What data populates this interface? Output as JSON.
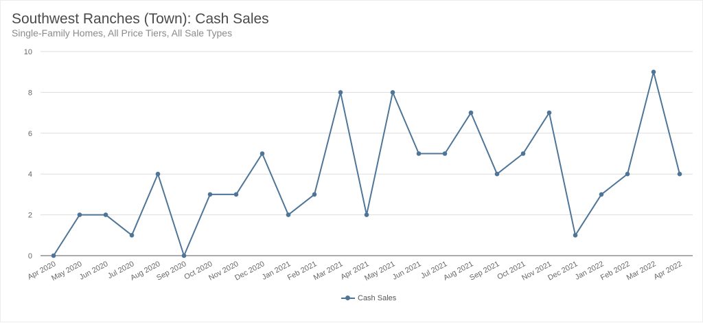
{
  "header": {
    "title": "Southwest Ranches (Town): Cash Sales",
    "subtitle": "Single-Family Homes, All Price Tiers, All Sale Types"
  },
  "legend": {
    "label": "Cash Sales",
    "icon": "line-with-dot-marker"
  },
  "colors": {
    "series": "#4e7597",
    "grid": "#dddddd",
    "axis": "#555555",
    "title": "#4a4a4a",
    "subtitle": "#8a8a8a"
  },
  "chart_data": {
    "type": "line",
    "title": "Southwest Ranches (Town): Cash Sales",
    "subtitle": "Single-Family Homes, All Price Tiers, All Sale Types",
    "xlabel": "",
    "ylabel": "",
    "ylim": [
      0,
      10
    ],
    "yticks": [
      0,
      2,
      4,
      6,
      8,
      10
    ],
    "grid": true,
    "legend_position": "bottom",
    "categories": [
      "Apr 2020",
      "May 2020",
      "Jun 2020",
      "Jul 2020",
      "Aug 2020",
      "Sep 2020",
      "Oct 2020",
      "Nov 2020",
      "Dec 2020",
      "Jan 2021",
      "Feb 2021",
      "Mar 2021",
      "Apr 2021",
      "May 2021",
      "Jun 2021",
      "Jul 2021",
      "Aug 2021",
      "Sep 2021",
      "Oct 2021",
      "Nov 2021",
      "Dec 2021",
      "Jan 2022",
      "Feb 2022",
      "Mar 2022",
      "Apr 2022"
    ],
    "series": [
      {
        "name": "Cash Sales",
        "color": "#4e7597",
        "values": [
          0,
          2,
          2,
          1,
          4,
          0,
          3,
          3,
          5,
          2,
          3,
          8,
          2,
          8,
          5,
          5,
          7,
          4,
          5,
          7,
          1,
          3,
          4,
          9,
          4
        ]
      }
    ]
  }
}
